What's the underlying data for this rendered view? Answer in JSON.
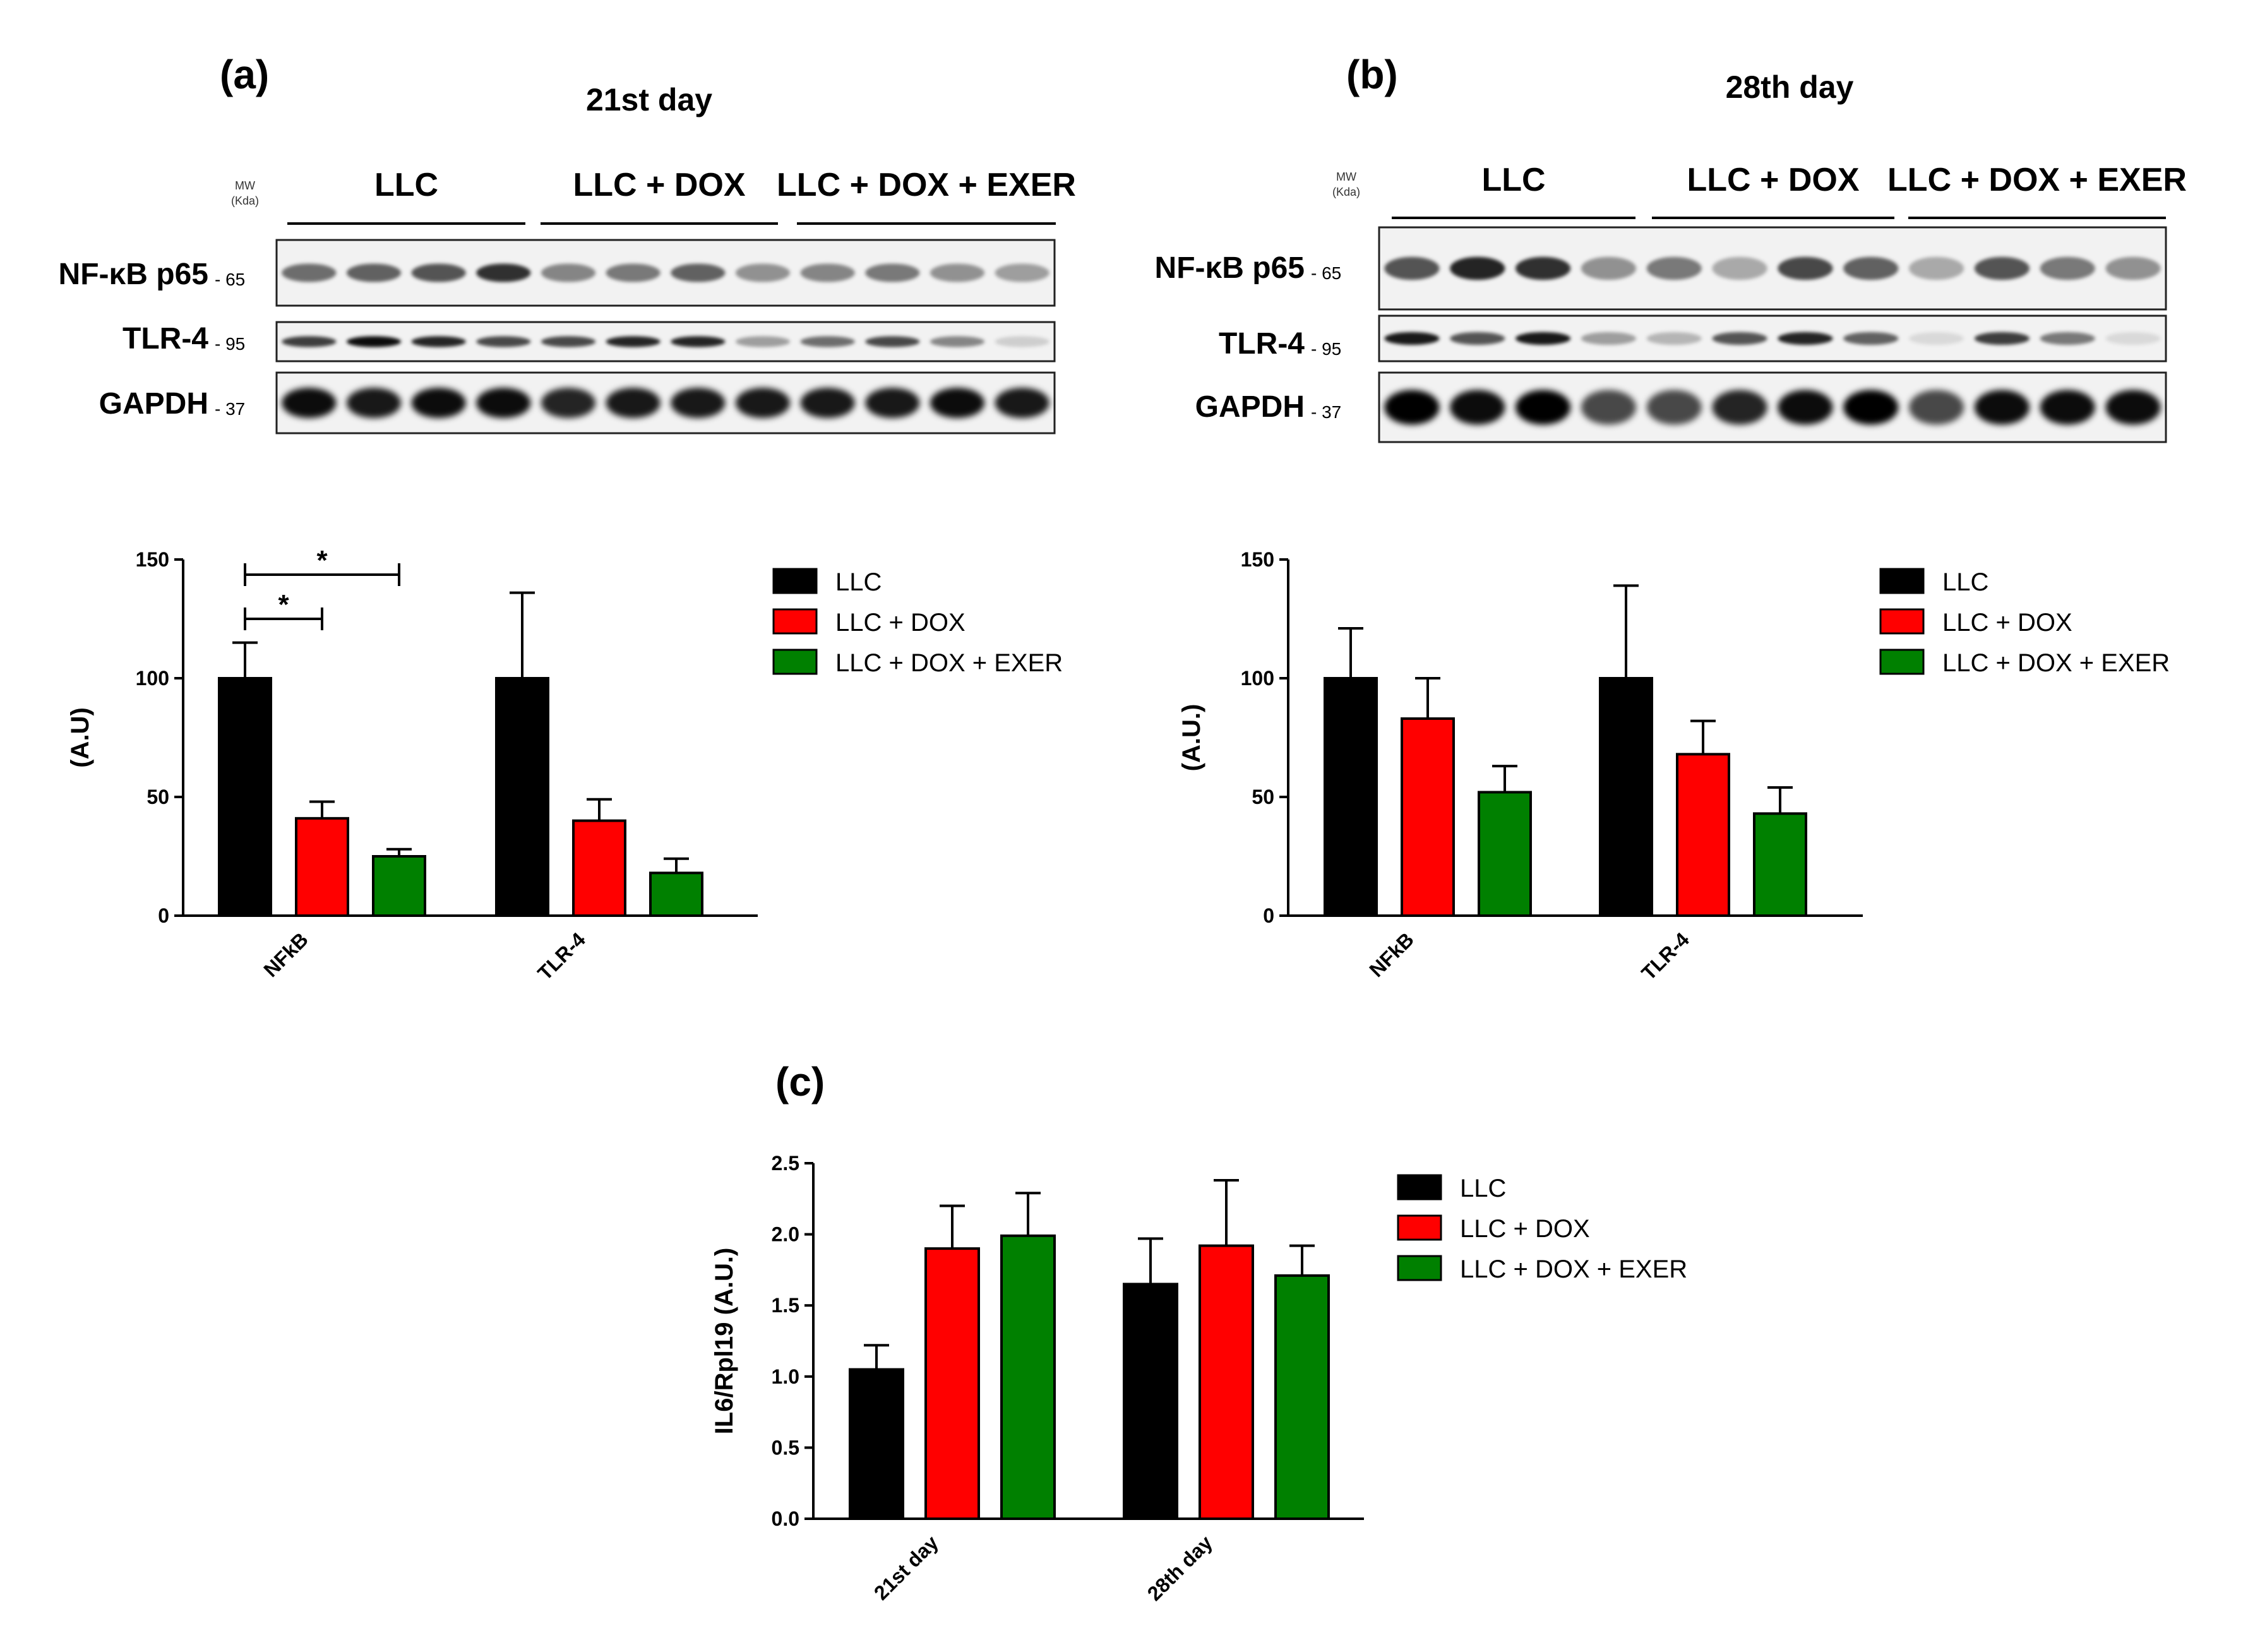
{
  "panels": {
    "a": {
      "letter": "(a)",
      "day": "21st day"
    },
    "b": {
      "letter": "(b)",
      "day": "28th day"
    },
    "c": {
      "letter": "(c)"
    }
  },
  "blot": {
    "mw_header": [
      "MW",
      "(Kda)"
    ],
    "groups": [
      "LLC",
      "LLC + DOX",
      "LLC + DOX + EXER"
    ],
    "rows": [
      {
        "protein": "NF-κB p65",
        "mw": "- 65"
      },
      {
        "protein": "TLR-4",
        "mw": "- 95"
      },
      {
        "protein": "GAPDH",
        "mw": "- 37"
      }
    ]
  },
  "legend": [
    "LLC",
    "LLC + DOX",
    "LLC + DOX + EXER"
  ],
  "colors": {
    "LLC": "#000000",
    "LLC + DOX": "#ff0000",
    "LLC + DOX + EXER": "#008000"
  },
  "chart_data": [
    {
      "type": "bar",
      "panel": "a",
      "ylabel": "(A.U)",
      "ylim": [
        0,
        150
      ],
      "yticks": [
        "0",
        "50",
        "100",
        "150"
      ],
      "categories": [
        "NFkB",
        "TLR-4"
      ],
      "series": [
        {
          "name": "LLC",
          "values": [
            100,
            100
          ],
          "errors": [
            15,
            36
          ]
        },
        {
          "name": "LLC + DOX",
          "values": [
            41,
            40
          ],
          "errors": [
            7,
            9
          ]
        },
        {
          "name": "LLC + DOX + EXER",
          "values": [
            25,
            18
          ],
          "errors": [
            3,
            6
          ]
        }
      ],
      "annotations": [
        {
          "label": "*",
          "from": "LLC",
          "to": "LLC + DOX + EXER",
          "category": "NFkB"
        },
        {
          "label": "*",
          "from": "LLC",
          "to": "LLC + DOX",
          "category": "NFkB"
        }
      ]
    },
    {
      "type": "bar",
      "panel": "b",
      "ylabel": "(A.U.)",
      "ylim": [
        0,
        150
      ],
      "yticks": [
        "0",
        "50",
        "100",
        "150"
      ],
      "categories": [
        "NFkB",
        "TLR-4"
      ],
      "series": [
        {
          "name": "LLC",
          "values": [
            100,
            100
          ],
          "errors": [
            21,
            39
          ]
        },
        {
          "name": "LLC + DOX",
          "values": [
            83,
            68
          ],
          "errors": [
            17,
            14
          ]
        },
        {
          "name": "LLC + DOX + EXER",
          "values": [
            52,
            43
          ],
          "errors": [
            11,
            11
          ]
        }
      ]
    },
    {
      "type": "bar",
      "panel": "c",
      "ylabel": "IL6/Rpl19 (A.U.)",
      "ylim": [
        0,
        2.5
      ],
      "yticks": [
        "0.0",
        "0.5",
        "1.0",
        "1.5",
        "2.0",
        "2.5"
      ],
      "categories": [
        "21st day",
        "28th day"
      ],
      "series": [
        {
          "name": "LLC",
          "values": [
            1.05,
            1.65
          ],
          "errors": [
            0.17,
            0.32
          ]
        },
        {
          "name": "LLC + DOX",
          "values": [
            1.9,
            1.92
          ],
          "errors": [
            0.3,
            0.46
          ]
        },
        {
          "name": "LLC + DOX + EXER",
          "values": [
            1.99,
            1.71
          ],
          "errors": [
            0.3,
            0.21
          ]
        }
      ]
    }
  ]
}
